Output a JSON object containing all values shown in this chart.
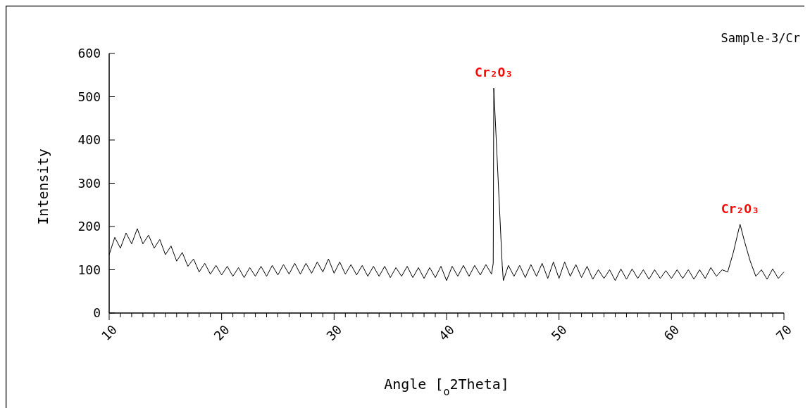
{
  "chart_data": {
    "type": "line",
    "title": "Sample-3/Cr",
    "xlabel": "Angle [$_{o}$2Theta]",
    "ylabel": "Intensity",
    "x": [
      10,
      10.5,
      11,
      11.5,
      12,
      12.5,
      13,
      13.5,
      14,
      14.5,
      15,
      15.5,
      16,
      16.5,
      17,
      17.5,
      18,
      18.5,
      19,
      19.5,
      20,
      20.5,
      21,
      21.5,
      22,
      22.5,
      23,
      23.5,
      24,
      24.5,
      25,
      25.5,
      26,
      26.5,
      27,
      27.5,
      28,
      28.5,
      29,
      29.5,
      30,
      30.5,
      31,
      31.5,
      32,
      32.5,
      33,
      33.5,
      34,
      34.5,
      35,
      35.5,
      36,
      36.5,
      37,
      37.5,
      38,
      38.5,
      39,
      39.5,
      40,
      40.5,
      41,
      41.5,
      42,
      42.5,
      43,
      43.5,
      44,
      44.15,
      44.2,
      44.95,
      45.05,
      45.5,
      46,
      46.5,
      47,
      47.5,
      48,
      48.5,
      49,
      49.5,
      50,
      50.5,
      51,
      51.5,
      52,
      52.5,
      53,
      53.5,
      54,
      54.5,
      55,
      55.5,
      56,
      56.5,
      57,
      57.5,
      58,
      58.5,
      59,
      59.5,
      60,
      60.5,
      61,
      61.5,
      62,
      62.5,
      63,
      63.5,
      64,
      64.5,
      65,
      65.5,
      66,
      66.1,
      66.5,
      67,
      67.5,
      68,
      68.5,
      69,
      69.5,
      70
    ],
    "series": [
      {
        "color": "#000000",
        "values": [
          135,
          175,
          150,
          185,
          160,
          195,
          160,
          180,
          150,
          170,
          135,
          155,
          120,
          140,
          108,
          125,
          95,
          115,
          90,
          110,
          88,
          108,
          85,
          105,
          82,
          105,
          85,
          108,
          85,
          110,
          88,
          112,
          90,
          115,
          90,
          115,
          92,
          118,
          95,
          125,
          92,
          118,
          90,
          112,
          88,
          110,
          85,
          108,
          85,
          108,
          82,
          105,
          85,
          108,
          82,
          105,
          80,
          105,
          82,
          108,
          75,
          108,
          85,
          110,
          85,
          110,
          88,
          112,
          90,
          115,
          520,
          110,
          75,
          110,
          85,
          110,
          82,
          112,
          85,
          115,
          80,
          118,
          80,
          118,
          85,
          112,
          82,
          108,
          78,
          100,
          80,
          100,
          75,
          102,
          78,
          102,
          80,
          100,
          78,
          100,
          80,
          98,
          80,
          100,
          80,
          100,
          78,
          100,
          80,
          105,
          85,
          100,
          95,
          140,
          195,
          205,
          165,
          120,
          85,
          100,
          78,
          102,
          80,
          95
        ]
      }
    ],
    "xlim": [
      10,
      70
    ],
    "ylim": [
      0,
      600
    ],
    "xticks": [
      10,
      {
        "value": 11,
        "label": null
      },
      {
        "value": 12,
        "label": null
      },
      {
        "value": 13,
        "label": null
      },
      {
        "value": 14,
        "label": null
      },
      {
        "value": 15,
        "label": null
      },
      {
        "value": 16,
        "label": null
      },
      {
        "value": 17,
        "label": null
      },
      {
        "value": 18,
        "label": null
      },
      {
        "value": 19,
        "label": null
      },
      20,
      {
        "value": 21,
        "label": null
      },
      {
        "value": 22,
        "label": null
      },
      {
        "value": 23,
        "label": null
      },
      {
        "value": 24,
        "label": null
      },
      {
        "value": 25,
        "label": null
      },
      {
        "value": 26,
        "label": null
      },
      {
        "value": 27,
        "label": null
      },
      {
        "value": 28,
        "label": null
      },
      {
        "value": 29,
        "label": null
      },
      30,
      {
        "value": 31,
        "label": null
      },
      {
        "value": 32,
        "label": null
      },
      {
        "value": 33,
        "label": null
      },
      {
        "value": 34,
        "label": null
      },
      {
        "value": 35,
        "label": null
      },
      {
        "value": 36,
        "label": null
      },
      {
        "value": 37,
        "label": null
      },
      {
        "value": 38,
        "label": null
      },
      {
        "value": 39,
        "label": null
      },
      40,
      {
        "value": 41,
        "label": null
      },
      {
        "value": 42,
        "label": null
      },
      {
        "value": 43,
        "label": null
      },
      {
        "value": 44,
        "label": null
      },
      {
        "value": 45,
        "label": null
      },
      {
        "value": 46,
        "label": null
      },
      {
        "value": 47,
        "label": null
      },
      {
        "value": 48,
        "label": null
      },
      {
        "value": 49,
        "label": null
      },
      50,
      {
        "value": 51,
        "label": null
      },
      {
        "value": 52,
        "label": null
      },
      {
        "value": 53,
        "label": null
      },
      {
        "value": 54,
        "label": null
      },
      {
        "value": 55,
        "label": null
      },
      {
        "value": 56,
        "label": null
      },
      {
        "value": 57,
        "label": null
      },
      {
        "value": 58,
        "label": null
      },
      {
        "value": 59,
        "label": null
      },
      60,
      {
        "value": 61,
        "label": null
      },
      {
        "value": 62,
        "label": null
      },
      {
        "value": 63,
        "label": null
      },
      {
        "value": 64,
        "label": null
      },
      {
        "value": 65,
        "label": null
      },
      {
        "value": 66,
        "label": null
      },
      {
        "value": 67,
        "label": null
      },
      {
        "value": 68,
        "label": null
      },
      {
        "value": 69,
        "label": null
      },
      70
    ],
    "yticks": [
      0,
      100,
      200,
      300,
      400,
      500,
      600
    ],
    "annotations": [
      {
        "text": "Cr₂O₃",
        "x": 44.2,
        "y": 520
      },
      {
        "text": "Cr₂O₃",
        "x": 66.1,
        "y": 205
      }
    ],
    "grid": false,
    "marker": "none",
    "line_style": "solid"
  }
}
